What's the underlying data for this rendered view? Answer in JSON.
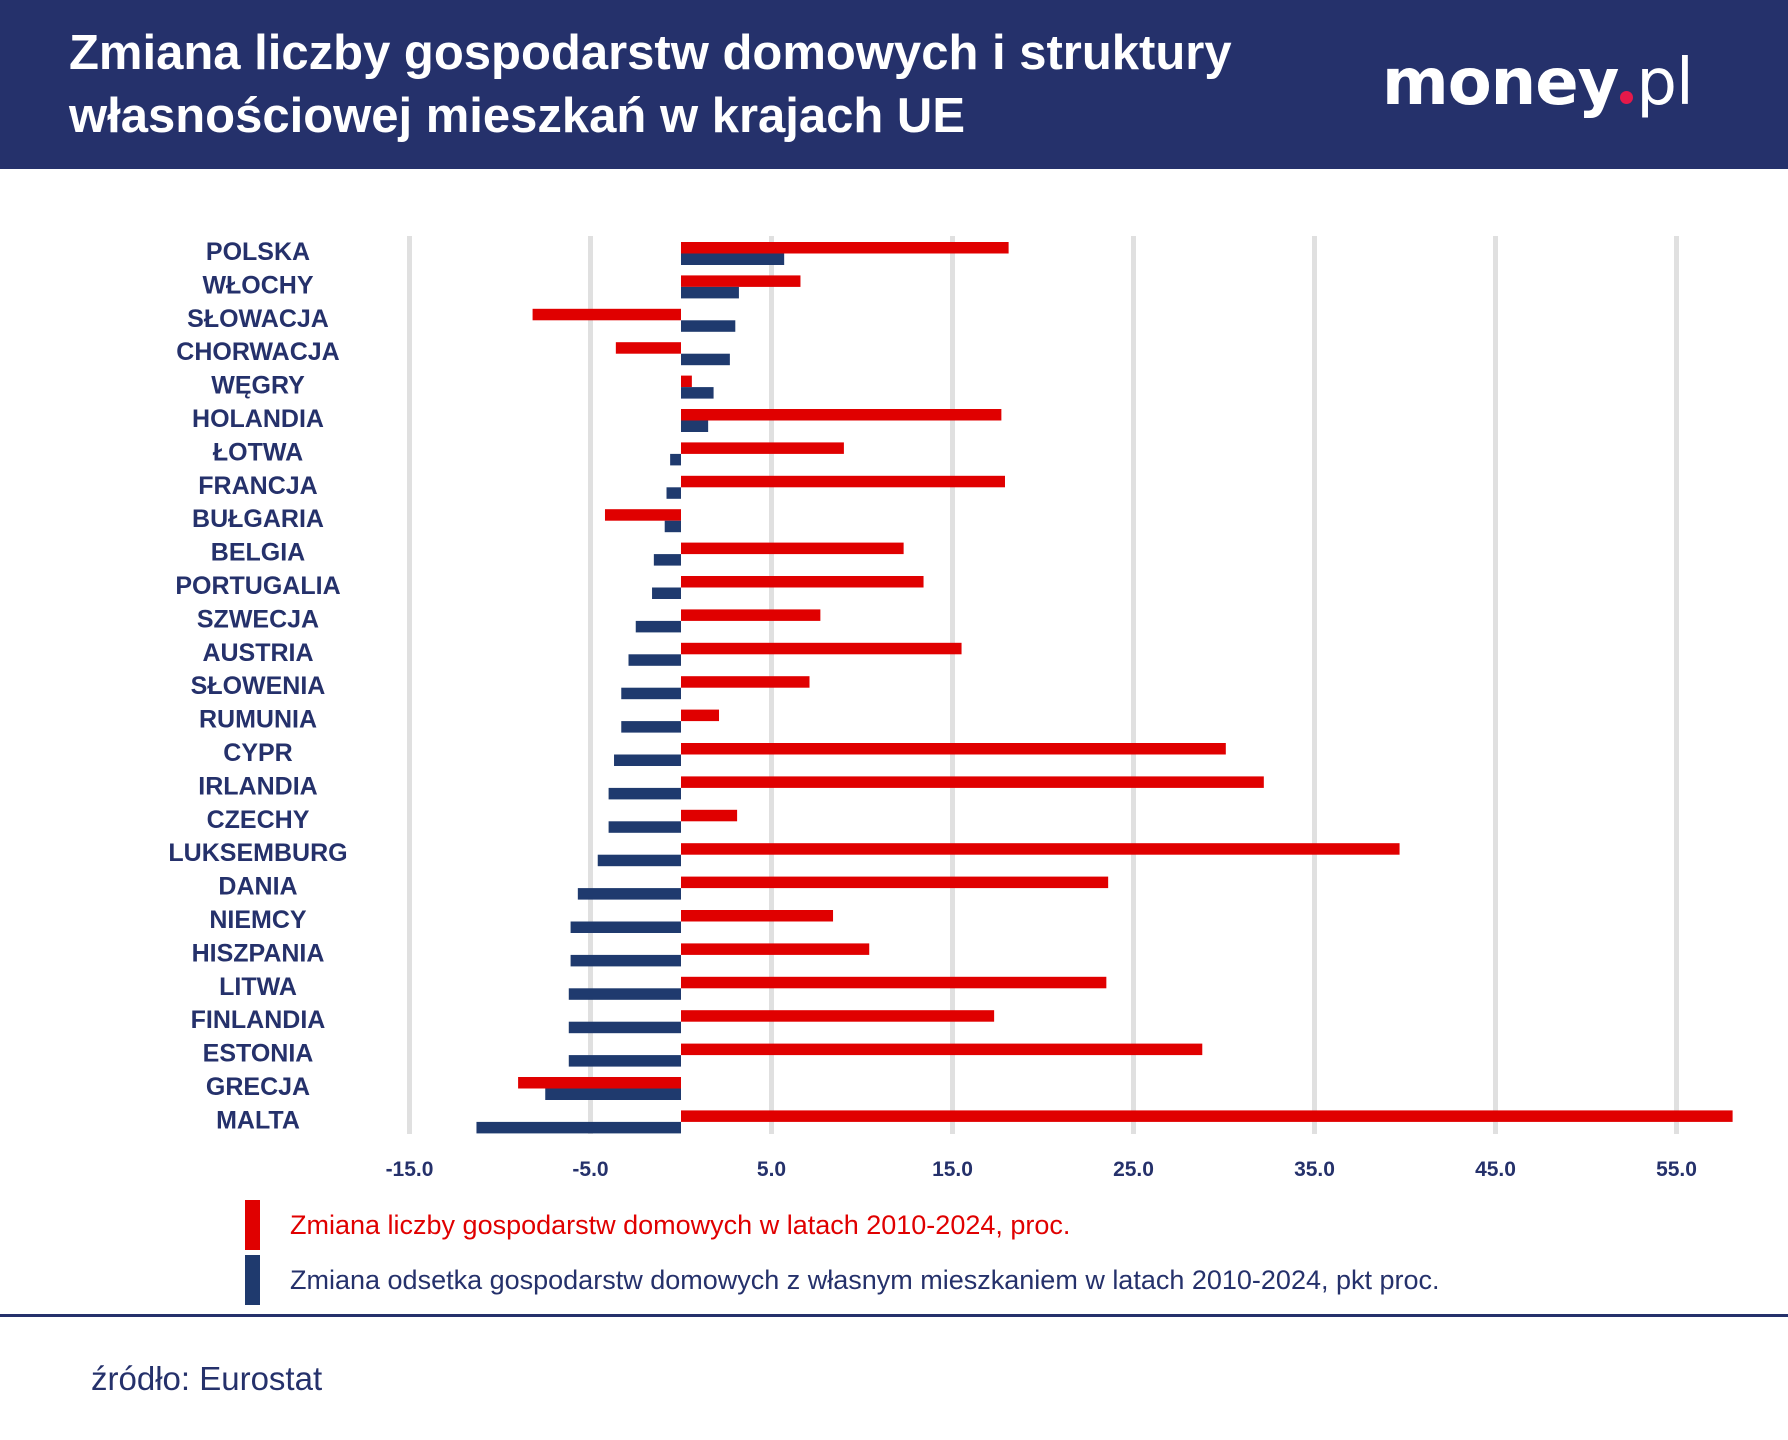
{
  "header": {
    "title_line1": "Zmiana liczby gospodarstw domowych i struktury",
    "title_line2": "własnościowej mieszkań w krajach UE",
    "logo": "money.pl"
  },
  "colors": {
    "header": "#25316b",
    "households": "#e00000",
    "ownership": "#1f3a6e",
    "grid": "#e0e0e0"
  },
  "chart_data": {
    "type": "bar",
    "orientation": "horizontal",
    "title": "",
    "xlim": [
      -15,
      58
    ],
    "xticks": [
      -15,
      -5,
      5,
      15,
      25,
      35,
      45,
      55
    ],
    "xtick_labels": [
      "-15.0",
      "-5.0",
      "5.0",
      "15.0",
      "25.0",
      "35.0",
      "45.0",
      "55.0"
    ],
    "grid": "vertical",
    "legend_position": "bottom",
    "categories": [
      "POLSKA",
      "WŁOCHY",
      "SŁOWACJA",
      "CHORWACJA",
      "WĘGRY",
      "HOLANDIA",
      "ŁOTWA",
      "FRANCJA",
      "BUŁGARIA",
      "BELGIA",
      "PORTUGALIA",
      "SZWECJA",
      "AUSTRIA",
      "SŁOWENIA",
      "RUMUNIA",
      "CYPR",
      "IRLANDIA",
      "CZECHY",
      "LUKSEMBURG",
      "DANIA",
      "NIEMCY",
      "HISZPANIA",
      "LITWA",
      "FINLANDIA",
      "ESTONIA",
      "GRECJA",
      "MALTA"
    ],
    "series": [
      {
        "name": "Zmiana liczby gospodarstw domowych w latach 2010-2024, proc.",
        "color": "#e00000",
        "values": [
          18.1,
          6.6,
          -8.2,
          -3.6,
          0.6,
          17.7,
          9.0,
          17.9,
          -4.2,
          12.3,
          13.4,
          7.7,
          15.5,
          7.1,
          2.1,
          30.1,
          32.2,
          3.1,
          39.7,
          23.6,
          8.4,
          10.4,
          23.5,
          17.3,
          28.8,
          -9.0,
          58.1
        ]
      },
      {
        "name": "Zmiana odsetka gospodarstw domowych z własnym mieszkaniem w latach 2010-2024, pkt proc.",
        "color": "#1f3a6e",
        "values": [
          5.7,
          3.2,
          3.0,
          2.7,
          1.8,
          1.5,
          -0.6,
          -0.8,
          -0.9,
          -1.5,
          -1.6,
          -2.5,
          -2.9,
          -3.3,
          -3.3,
          -3.7,
          -4.0,
          -4.0,
          -4.6,
          -5.7,
          -6.1,
          -6.1,
          -6.2,
          -6.2,
          -6.2,
          -7.5,
          -11.3
        ]
      }
    ]
  },
  "footer": {
    "source": "źródło: Eurostat"
  }
}
